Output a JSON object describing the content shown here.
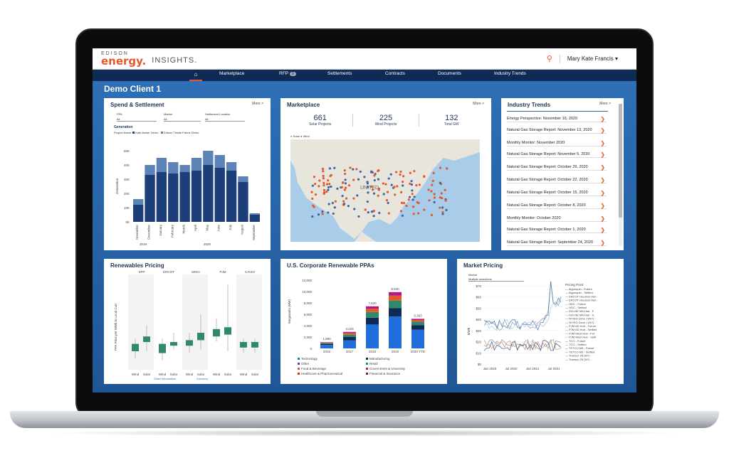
{
  "header": {
    "logo_edison": "EDISON",
    "logo_energy": "energy.",
    "logo_insights": "INSIGHTS.",
    "user": "Mary Kate Francis ▾"
  },
  "nav": {
    "items": [
      "Marketplace",
      "RFP",
      "Settlements",
      "Contracts",
      "Documents",
      "Industry Trends"
    ],
    "rfp_badge": "0"
  },
  "client_title": "Demo Client 1",
  "spend": {
    "title": "Spend & Settlement",
    "more": "More >",
    "filters": [
      "PPA",
      "Market",
      "Settlement Location"
    ],
    "filter_value": "All",
    "section": "Generation",
    "legend": [
      "Project Name",
      "Kate Asiner Demo",
      "Edison Thistle Farms Demo"
    ],
    "ylabel": "Generation",
    "yticks": [
      "50K",
      "40K",
      "30K",
      "20K",
      "10K",
      "0K"
    ],
    "months": [
      "November",
      "December",
      "January",
      "February",
      "March",
      "April",
      "May",
      "June",
      "July",
      "August",
      "September"
    ],
    "years": [
      "2019",
      "2020"
    ],
    "colors": {
      "dark": "#1c3f7a",
      "light": "#5b83b6"
    }
  },
  "chart_data": {
    "type": "bar",
    "categories": [
      "November",
      "December",
      "January",
      "February",
      "March",
      "April",
      "May",
      "June",
      "July",
      "August",
      "September"
    ],
    "series": [
      {
        "name": "Kate Asiner Demo",
        "values": [
          12,
          33,
          35,
          34,
          35,
          36,
          40,
          38,
          36,
          28,
          5
        ]
      },
      {
        "name": "Edison Thistle Farms Demo",
        "values": [
          4,
          7,
          10,
          8,
          5,
          9,
          10,
          9,
          6,
          4,
          1
        ]
      }
    ],
    "ylim": [
      0,
      50
    ],
    "title": "Generation"
  },
  "marketplace": {
    "title": "Marketplace",
    "more": "More >",
    "stats": [
      {
        "value": "661",
        "label": "Solar Projects"
      },
      {
        "value": "225",
        "label": "Wind Projects"
      },
      {
        "value": "132",
        "label": "Total GW"
      }
    ],
    "legend": [
      "Solar",
      "Wind"
    ],
    "map_label": "UNITED"
  },
  "trends": {
    "title": "Industry Trends",
    "more": "More >",
    "items": [
      "Energy Perspective: November 16, 2020",
      "Natural Gas Storage Report: November 13, 2020",
      "Monthly Monitor: November 2020",
      "Natural Gas Storage Report: November 5, 2020",
      "Natural Gas Storage Report: October 29, 2020",
      "Natural Gas Storage Report: October 22, 2020",
      "Natural Gas Storage Report: October 15, 2020",
      "Natural Gas Storage Report: October 8, 2020",
      "Monthly Monitor: October 2020",
      "Natural Gas Storage Report: October 1, 2020",
      "Natural Gas Storage Report: September 24, 2020"
    ]
  },
  "renewables": {
    "title": "Renewables Pricing",
    "markets": [
      "SPP",
      "ERCOT",
      "MISO",
      "PJM",
      "CAISO"
    ],
    "types": [
      "Wind",
      "Solar"
    ],
    "ylabel": "PPA Price per MWh in Local Curr",
    "footer": [
      "Chart Information",
      "Currency"
    ]
  },
  "ppas": {
    "title": "U.S. Corporate Renewable PPAs",
    "ylabel": "Megawatts (MW)",
    "yticks": [
      "12,000",
      "10,000",
      "8,000",
      "6,000",
      "4,000",
      "2,000",
      "0"
    ],
    "years": [
      "2016",
      "2017",
      "2018",
      "2019",
      "2020 YTD"
    ],
    "totals": [
      "1,860",
      "3,223",
      "7,820",
      "8,840",
      "5,363"
    ],
    "legend": [
      "Technology",
      "Manufacturing",
      "Other",
      "Retail",
      "Food & Beverage",
      "Government & University",
      "Healthcare & Pharmaceutical",
      "Financial & Insurance"
    ]
  },
  "market_pricing": {
    "title": "Market Pricing",
    "filter_label": "Market",
    "filter_value": "Multiple selections",
    "legend_title": "Pricing Point",
    "legend": [
      "Algonquin - Future",
      "Algonquin - Settled",
      "ERCOT Houston Hub -",
      "ERCOT Houston Hub -",
      "HDC - Future",
      "HDC - Settled",
      "ISO-NE MA Hub - F",
      "ISO-NE MA Hub - S",
      "NYISO Zone J (NY) -",
      "NYISO Zone J (NY) -",
      "PJM AD Hub - Future",
      "PJM AD Hub - Settled",
      "PJM West Hub - Fut",
      "PJM West Hub - Settl",
      "TCO - Future",
      "TCO - Settled",
      "TETCO M3 - Future",
      "TETCO M3 - Settled",
      "Transco Z6 (NY) -",
      "Transco Z6 (NY) -"
    ],
    "yticks": [
      "$70",
      "$60",
      "$50",
      "$40",
      "$30",
      "$20",
      "$10",
      "$0"
    ],
    "xticks": [
      "Jan 2020",
      "Jul 2020",
      "Jan 2021",
      "Jul 2021"
    ],
    "ylabel": "$/Wh"
  }
}
